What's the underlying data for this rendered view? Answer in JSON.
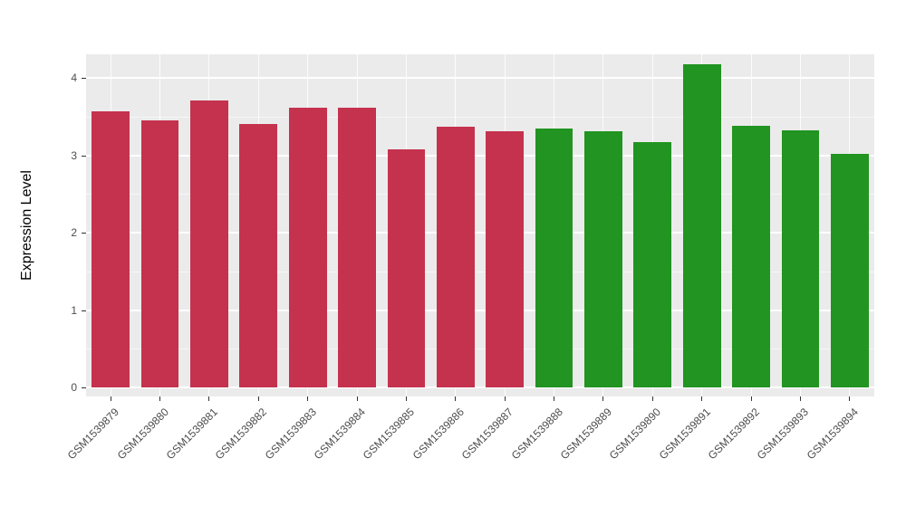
{
  "chart_data": {
    "type": "bar",
    "title": "",
    "xlabel": "",
    "ylabel": "Expression Level",
    "ylim": [
      0,
      4.3
    ],
    "yticks": [
      0,
      1,
      2,
      3,
      4
    ],
    "grid": "on",
    "legend": "none",
    "panel_background": "#EBEBEB",
    "gridline_color": "#FFFFFF",
    "categories": [
      "GSM1539879",
      "GSM1539880",
      "GSM1539881",
      "GSM1539882",
      "GSM1539883",
      "GSM1539884",
      "GSM1539885",
      "GSM1539886",
      "GSM1539887",
      "GSM1539888",
      "GSM1539889",
      "GSM1539890",
      "GSM1539891",
      "GSM1539892",
      "GSM1539893",
      "GSM1539894"
    ],
    "values": [
      3.57,
      3.45,
      3.71,
      3.4,
      3.61,
      3.61,
      3.08,
      3.37,
      3.31,
      3.34,
      3.31,
      3.17,
      4.17,
      3.38,
      3.32,
      3.02
    ],
    "groups": [
      "red",
      "red",
      "red",
      "red",
      "red",
      "red",
      "red",
      "red",
      "red",
      "green",
      "green",
      "green",
      "green",
      "green",
      "green",
      "green"
    ],
    "colors": {
      "red": "#C5324E",
      "green": "#219421"
    }
  }
}
